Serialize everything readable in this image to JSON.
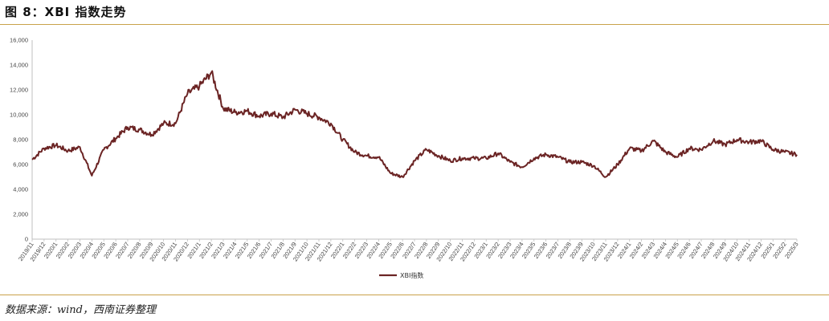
{
  "figure": {
    "title": "图 8：XBI 指数走势",
    "source": "数据来源：wind，西南证券整理"
  },
  "chart_data": {
    "type": "line",
    "title": "",
    "xlabel": "",
    "ylabel": "",
    "ylim": [
      0,
      16000
    ],
    "yticks": [
      0,
      2000,
      4000,
      6000,
      8000,
      10000,
      12000,
      14000,
      16000
    ],
    "ytick_labels": [
      "0",
      "2,000",
      "4,000",
      "6,000",
      "8,000",
      "10,000",
      "12,000",
      "14,000",
      "16,000"
    ],
    "xticks": [
      "2019/11",
      "2019/12",
      "2020/1",
      "2020/2",
      "2020/3",
      "2020/4",
      "2020/5",
      "2020/6",
      "2020/7",
      "2020/8",
      "2020/9",
      "2020/10",
      "2020/11",
      "2020/12",
      "2021/1",
      "2021/2",
      "2021/3",
      "2021/4",
      "2021/5",
      "2021/6",
      "2021/7",
      "2021/8",
      "2021/9",
      "2021/10",
      "2021/11",
      "2021/12",
      "2022/1",
      "2022/2",
      "2022/3",
      "2022/4",
      "2022/5",
      "2022/6",
      "2022/7",
      "2022/8",
      "2022/9",
      "2022/10",
      "2022/11",
      "2022/12",
      "2023/1",
      "2023/2",
      "2023/3",
      "2023/4",
      "2023/5",
      "2023/6",
      "2023/7",
      "2023/8",
      "2023/9",
      "2023/10",
      "2023/11",
      "2023/12",
      "2024/1",
      "2024/2",
      "2024/3",
      "2024/4",
      "2024/5",
      "2024/6",
      "2024/7",
      "2024/8",
      "2024/9",
      "2024/10",
      "2024/11",
      "2024/12",
      "2025/1",
      "2025/2",
      "2025/3"
    ],
    "grid": false,
    "legend_position": "bottom",
    "line_color": "#6b2424",
    "series": [
      {
        "name": "XBI指数",
        "values": [
          6400,
          7300,
          7550,
          7100,
          7400,
          5100,
          7200,
          8100,
          9000,
          8800,
          8400,
          9300,
          9300,
          11700,
          12300,
          13400,
          10500,
          10200,
          10300,
          9900,
          10100,
          9800,
          10400,
          10100,
          9800,
          9300,
          8000,
          7000,
          6700,
          6600,
          5300,
          5000,
          6300,
          7200,
          6700,
          6300,
          6500,
          6500,
          6500,
          6900,
          6200,
          5800,
          6500,
          6800,
          6600,
          6200,
          6200,
          5900,
          5000,
          6000,
          7300,
          7100,
          7900,
          7000,
          6600,
          7300,
          7200,
          7900,
          7600,
          8000,
          7800,
          7900,
          7200,
          7000,
          6800
        ]
      }
    ]
  }
}
